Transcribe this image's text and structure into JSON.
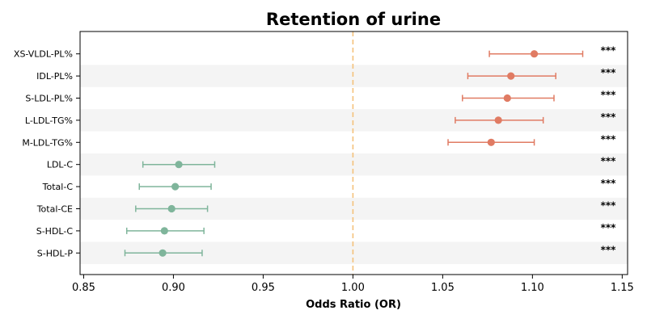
{
  "chart_data": {
    "type": "forest",
    "title": "Retention of urine",
    "xlabel": "Odds Ratio (OR)",
    "xlim": [
      0.848,
      1.153
    ],
    "xticks": [
      0.85,
      0.9,
      0.95,
      1.0,
      1.05,
      1.1,
      1.15
    ],
    "xtick_labels": [
      "0.85",
      "0.90",
      "0.95",
      "1.00",
      "1.05",
      "1.10",
      "1.15"
    ],
    "reference_line": 1.0,
    "colors": {
      "positive": "#e07b63",
      "negative": "#7fb59b",
      "reference_line": "#f5c17a",
      "band": "#f4f4f4"
    },
    "rows": [
      {
        "label": "XS-VLDL-PL%",
        "or": 1.101,
        "lower": 1.076,
        "upper": 1.128,
        "significance": "***",
        "direction": "positive"
      },
      {
        "label": "IDL-PL%",
        "or": 1.088,
        "lower": 1.064,
        "upper": 1.113,
        "significance": "***",
        "direction": "positive"
      },
      {
        "label": "S-LDL-PL%",
        "or": 1.086,
        "lower": 1.061,
        "upper": 1.112,
        "significance": "***",
        "direction": "positive"
      },
      {
        "label": "L-LDL-TG%",
        "or": 1.081,
        "lower": 1.057,
        "upper": 1.106,
        "significance": "***",
        "direction": "positive"
      },
      {
        "label": "M-LDL-TG%",
        "or": 1.077,
        "lower": 1.053,
        "upper": 1.101,
        "significance": "***",
        "direction": "positive"
      },
      {
        "label": "LDL-C",
        "or": 0.903,
        "lower": 0.883,
        "upper": 0.923,
        "significance": "***",
        "direction": "negative"
      },
      {
        "label": "Total-C",
        "or": 0.901,
        "lower": 0.881,
        "upper": 0.921,
        "significance": "***",
        "direction": "negative"
      },
      {
        "label": "Total-CE",
        "or": 0.899,
        "lower": 0.879,
        "upper": 0.919,
        "significance": "***",
        "direction": "negative"
      },
      {
        "label": "S-HDL-C",
        "or": 0.895,
        "lower": 0.874,
        "upper": 0.917,
        "significance": "***",
        "direction": "negative"
      },
      {
        "label": "S-HDL-P",
        "or": 0.894,
        "lower": 0.873,
        "upper": 0.916,
        "significance": "***",
        "direction": "negative"
      }
    ]
  }
}
